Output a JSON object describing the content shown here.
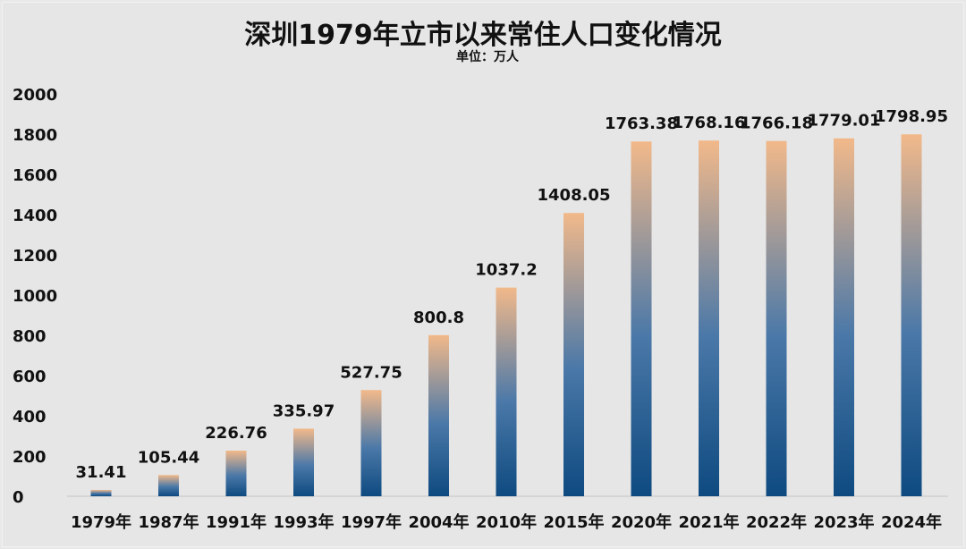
{
  "chart_data": {
    "type": "bar",
    "title": "深圳1979年立市以来常住人口变化情况",
    "subtitle": "单位：万人",
    "categories": [
      "1979年",
      "1987年",
      "1991年",
      "1993年",
      "1997年",
      "2004年",
      "2010年",
      "2015年",
      "2020年",
      "2021年",
      "2022年",
      "2023年",
      "2024年"
    ],
    "values": [
      31.41,
      105.44,
      226.76,
      335.97,
      527.75,
      800.8,
      1037.2,
      1408.05,
      1763.38,
      1768.16,
      1766.18,
      1779.01,
      1798.95
    ],
    "labels": [
      "31.41",
      "105.44",
      "226.76",
      "335.97",
      "527.75",
      "800.8",
      "1037.2",
      "1408.05",
      "1763.38",
      "1768.16",
      "1766.18",
      "1779.01",
      "1798.95"
    ],
    "ylim": [
      0,
      2000
    ],
    "yticks": [
      "0",
      "200",
      "400",
      "600",
      "800",
      "1000",
      "1200",
      "1400",
      "1600",
      "1800",
      "2000"
    ],
    "grid": false,
    "colors": {
      "bar_bottom": "#0e4a80",
      "bar_mid": "#4a78a8",
      "bar_top": "#f2b98a",
      "background": "#e6e6e6"
    }
  }
}
